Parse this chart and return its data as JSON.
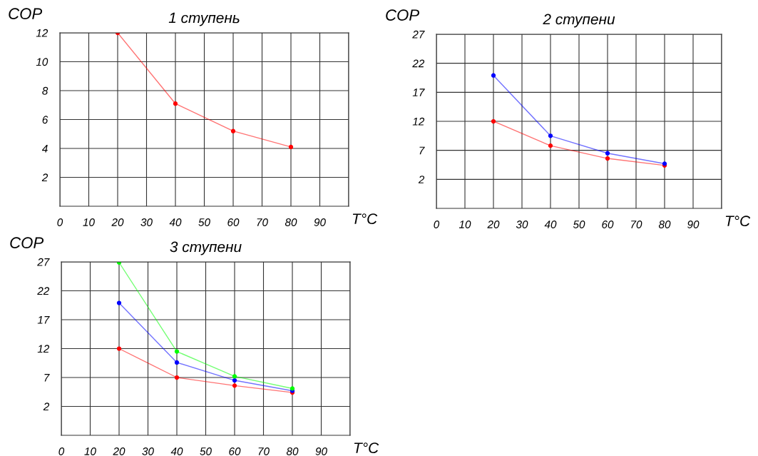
{
  "chart_data": [
    {
      "type": "line",
      "title": "1 ступень",
      "xlabel": "T°C",
      "ylabel": "COP",
      "xlim": [
        0,
        100
      ],
      "xticks": [
        0,
        10,
        20,
        30,
        40,
        50,
        60,
        70,
        80,
        90
      ],
      "ylim": [
        0,
        12
      ],
      "yticks": [
        2,
        4,
        6,
        8,
        10,
        12
      ],
      "grid": true,
      "marker": "circle",
      "line_style": "solid",
      "legend": false,
      "series": [
        {
          "color": "#ff0000",
          "x": [
            20,
            40,
            60,
            80
          ],
          "values": [
            12,
            7.1,
            5.2,
            4.1
          ]
        }
      ]
    },
    {
      "type": "line",
      "title": "2 ступени",
      "xlabel": "T°C",
      "ylabel": "COP",
      "xlim": [
        0,
        100
      ],
      "xticks": [
        0,
        10,
        20,
        30,
        40,
        50,
        60,
        70,
        80,
        90
      ],
      "ylim": [
        -3,
        27
      ],
      "yticks": [
        2,
        7,
        12,
        17,
        22,
        27
      ],
      "grid": true,
      "marker": "circle",
      "line_style": "solid",
      "legend": false,
      "series": [
        {
          "color": "#ff0000",
          "x": [
            20,
            40,
            60,
            80
          ],
          "values": [
            12,
            7.8,
            5.6,
            4.4
          ]
        },
        {
          "color": "#0000ff",
          "x": [
            20,
            40,
            60,
            80
          ],
          "values": [
            19.9,
            9.5,
            6.5,
            4.7
          ]
        }
      ]
    },
    {
      "type": "line",
      "title": "3 ступени",
      "xlabel": "T°C",
      "ylabel": "COP",
      "xlim": [
        0,
        100
      ],
      "xticks": [
        0,
        10,
        20,
        30,
        40,
        50,
        60,
        70,
        80,
        90
      ],
      "ylim": [
        -3,
        27
      ],
      "yticks": [
        2,
        7,
        12,
        17,
        22,
        27
      ],
      "grid": true,
      "marker": "circle",
      "line_style": "solid",
      "legend": false,
      "series": [
        {
          "color": "#ff0000",
          "x": [
            20,
            40,
            60,
            80
          ],
          "values": [
            12,
            7.0,
            5.6,
            4.4
          ]
        },
        {
          "color": "#0000ff",
          "x": [
            20,
            40,
            60,
            80
          ],
          "values": [
            19.9,
            9.6,
            6.5,
            4.7
          ]
        },
        {
          "color": "#00ff00",
          "x": [
            20,
            40,
            60,
            80
          ],
          "values": [
            26.9,
            11.5,
            7.2,
            5.1
          ]
        }
      ]
    }
  ]
}
